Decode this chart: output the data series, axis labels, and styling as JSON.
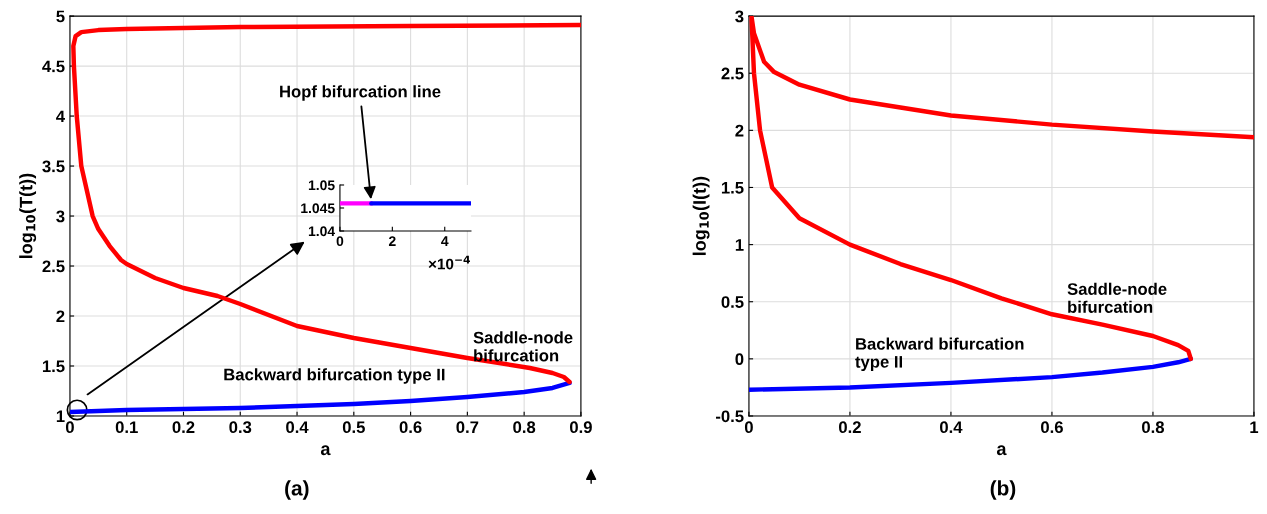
{
  "chart_data": [
    {
      "type": "line",
      "xlabel": "a",
      "ylabel": "log$_{10}$(T(t))",
      "xlim": [
        0,
        0.9
      ],
      "ylim": [
        1,
        5
      ],
      "xticks": [
        0,
        0.1,
        0.2,
        0.3,
        0.4,
        0.5,
        0.6,
        0.7,
        0.8,
        0.9
      ],
      "yticks": [
        1,
        1.5,
        2,
        2.5,
        3,
        3.5,
        4,
        4.5,
        5
      ],
      "grid": true,
      "series": [
        {
          "color": "#0000ff",
          "x": [
            0,
            0.1,
            0.2,
            0.3,
            0.4,
            0.5,
            0.6,
            0.7,
            0.8,
            0.85,
            0.88
          ],
          "values": [
            1.04,
            1.06,
            1.07,
            1.08,
            1.1,
            1.12,
            1.15,
            1.19,
            1.24,
            1.28,
            1.33
          ]
        },
        {
          "color": "#ff0000",
          "x": [
            0.88,
            0.87,
            0.85,
            0.81,
            0.7,
            0.6,
            0.5,
            0.4,
            0.3,
            0.26,
            0.2,
            0.15,
            0.1,
            0.09,
            0.07,
            0.05,
            0.04,
            0.03,
            0.02,
            0.012,
            0.007,
            0.006,
            0.01,
            0.02,
            0.05,
            0.1,
            0.3,
            0.6,
            0.9
          ],
          "values": [
            1.34,
            1.39,
            1.43,
            1.48,
            1.58,
            1.68,
            1.78,
            1.9,
            2.12,
            2.2,
            2.28,
            2.38,
            2.52,
            2.56,
            2.7,
            2.87,
            3.0,
            3.25,
            3.5,
            4.0,
            4.5,
            4.7,
            4.8,
            4.84,
            4.86,
            4.87,
            4.89,
            4.9,
            4.91
          ]
        }
      ],
      "annotations": [
        "Saddle-node\nbifurcation",
        "Backward bifurcation type II",
        "(a)"
      ]
    },
    {
      "type": "line",
      "xlim": [
        0,
        5
      ],
      "ylim": [
        1.04,
        1.05
      ],
      "xticks": [
        0,
        2,
        4
      ],
      "yticks": [
        1.04,
        1.045,
        1.05
      ],
      "series": [
        {
          "color": "#ff00ff",
          "x": [
            0,
            1.2
          ],
          "values": [
            1.046,
            1.046
          ]
        },
        {
          "color": "#0000ff",
          "x": [
            1.2,
            5
          ],
          "values": [
            1.046,
            1.046
          ]
        }
      ],
      "annotations": [
        {
          "text": "Hopf bifurcation line",
          "x": 1.2,
          "y": 1.046
        },
        "×10$^{−4}$"
      ]
    },
    {
      "type": "line",
      "xlabel": "a",
      "ylabel": "log$_{10}$(I(t))",
      "xlim": [
        0,
        1
      ],
      "ylim": [
        -0.5,
        3
      ],
      "xticks": [
        0,
        0.2,
        0.4,
        0.6,
        0.8,
        1
      ],
      "yticks": [
        -0.5,
        0,
        0.5,
        1,
        1.5,
        2,
        2.5,
        3
      ],
      "grid": true,
      "series": [
        {
          "color": "#0000ff",
          "x": [
            0,
            0.2,
            0.4,
            0.6,
            0.7,
            0.8,
            0.85,
            0.875
          ],
          "values": [
            -0.27,
            -0.25,
            -0.21,
            -0.16,
            -0.12,
            -0.07,
            -0.03,
            0.0
          ]
        },
        {
          "color": "#ff0000",
          "x": [
            0.875,
            0.87,
            0.85,
            0.8,
            0.7,
            0.6,
            0.5,
            0.4,
            0.3,
            0.2,
            0.1,
            0.046,
            0.022,
            0.01,
            0.005,
            0.01,
            0.03,
            0.05,
            0.1,
            0.2,
            0.3,
            0.4,
            0.6,
            0.8,
            1
          ],
          "values": [
            0.0,
            0.07,
            0.12,
            0.2,
            0.3,
            0.39,
            0.53,
            0.69,
            0.83,
            1.0,
            1.23,
            1.5,
            2.0,
            2.5,
            3.0,
            2.85,
            2.6,
            2.51,
            2.4,
            2.27,
            2.2,
            2.13,
            2.05,
            1.99,
            1.94
          ]
        }
      ],
      "annotations": [
        "Saddle-node\nbifurcation",
        "Backward bifurcation\ntype II",
        "(b)"
      ]
    }
  ]
}
